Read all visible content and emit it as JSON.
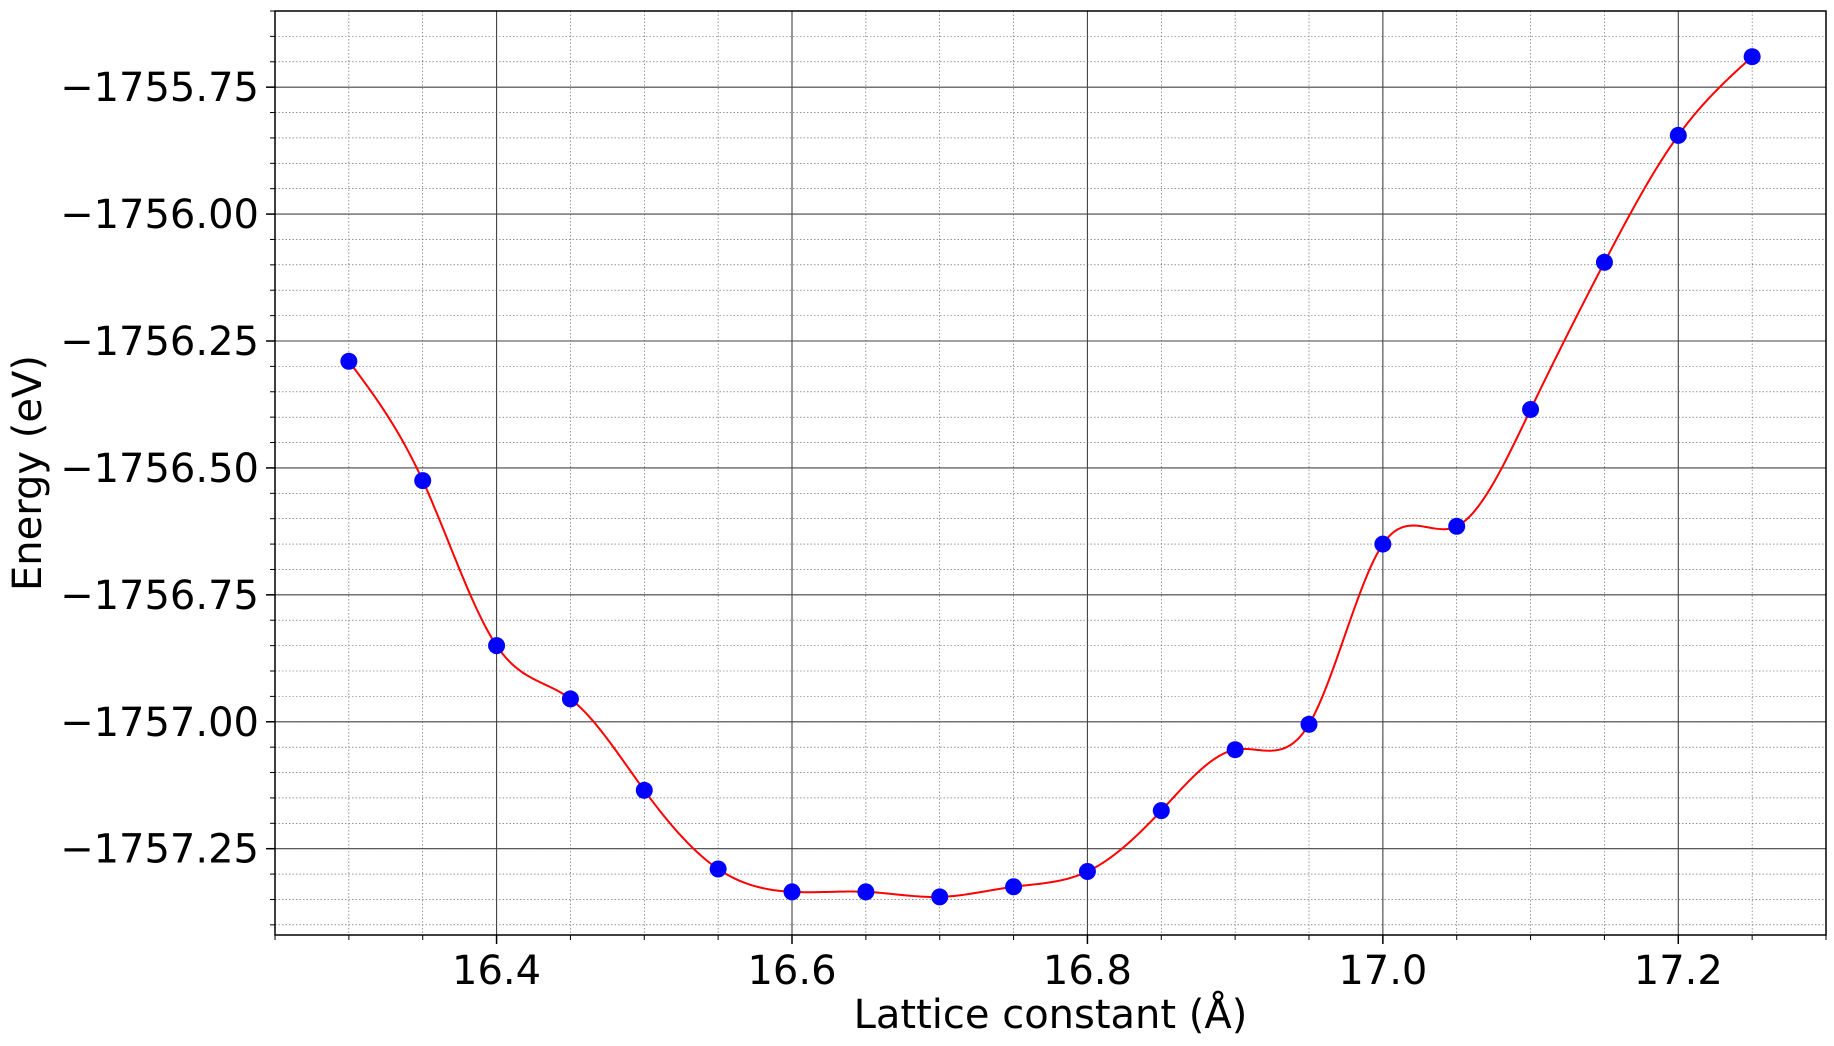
{
  "chart_data": {
    "type": "scatter",
    "title": "",
    "xlabel": "Lattice constant (Å)",
    "ylabel": "Energy (eV)",
    "xlim": [
      16.25,
      17.3
    ],
    "ylim": [
      -1757.42,
      -1755.6
    ],
    "x_ticks": [
      16.4,
      16.6,
      16.8,
      17.0,
      17.2
    ],
    "x_tick_labels": [
      "16.4",
      "16.6",
      "16.8",
      "17.0",
      "17.2"
    ],
    "y_ticks": [
      -1755.75,
      -1756.0,
      -1756.25,
      -1756.5,
      -1756.75,
      -1757.0,
      -1757.25
    ],
    "y_tick_labels": [
      "−1755.75",
      "−1756.00",
      "−1756.25",
      "−1756.50",
      "−1756.75",
      "−1757.00",
      "−1757.25"
    ],
    "x_minor_step": 0.05,
    "y_minor_step": 0.05,
    "grid": true,
    "series": [
      {
        "kind": "points",
        "color": "#0000ff",
        "x": [
          16.3,
          16.35,
          16.4,
          16.45,
          16.5,
          16.55,
          16.6,
          16.65,
          16.7,
          16.75,
          16.8,
          16.85,
          16.9,
          16.95,
          17.0,
          17.05,
          17.1,
          17.15,
          17.2,
          17.25
        ],
        "y": [
          -1756.29,
          -1756.525,
          -1756.85,
          -1756.955,
          -1757.135,
          -1757.29,
          -1757.335,
          -1757.335,
          -1757.345,
          -1757.325,
          -1757.295,
          -1757.175,
          -1757.055,
          -1757.005,
          -1756.65,
          -1756.615,
          -1756.385,
          -1756.095,
          -1755.845,
          -1755.69
        ]
      },
      {
        "kind": "smooth-fit",
        "color": "#ff0000"
      }
    ]
  }
}
